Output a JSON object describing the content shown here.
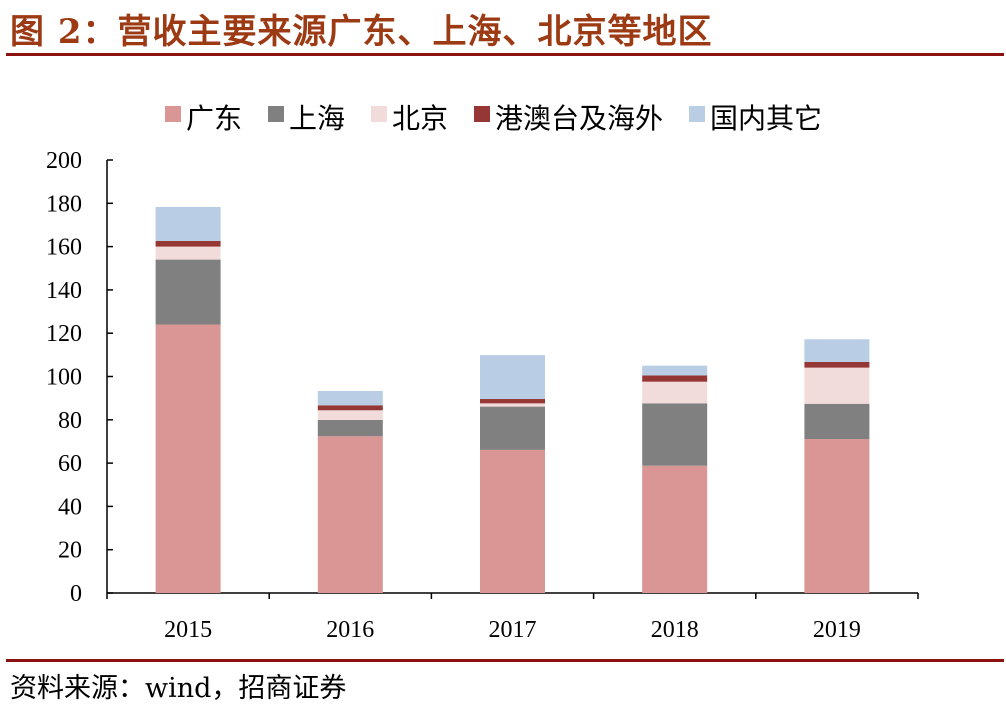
{
  "title": "图 2：营收主要来源广东、上海、北京等地区",
  "source": "资料来源：wind，招商证券",
  "chart_data": {
    "type": "bar",
    "stacked": true,
    "categories": [
      "2015",
      "2016",
      "2017",
      "2018",
      "2019"
    ],
    "ylim": [
      0,
      200
    ],
    "yticks": [
      0,
      20,
      40,
      60,
      80,
      100,
      120,
      140,
      160,
      180,
      200
    ],
    "grid": false,
    "legend_position": "top",
    "series": [
      {
        "name": "广东",
        "color": "#d99694",
        "values": [
          124.0,
          72.4,
          66.1,
          58.8,
          71.1
        ]
      },
      {
        "name": "上海",
        "color": "#808080",
        "values": [
          30.0,
          7.5,
          20.0,
          28.8,
          16.3
        ]
      },
      {
        "name": "北京",
        "color": "#f2dcdb",
        "values": [
          6.0,
          4.5,
          1.5,
          10.0,
          16.7
        ]
      },
      {
        "name": "港澳台及海外",
        "color": "#953735",
        "values": [
          2.6,
          2.3,
          2.0,
          2.9,
          2.6
        ]
      },
      {
        "name": "国内其它",
        "color": "#b9cde5",
        "values": [
          15.7,
          6.6,
          20.3,
          4.5,
          10.5
        ]
      }
    ]
  }
}
